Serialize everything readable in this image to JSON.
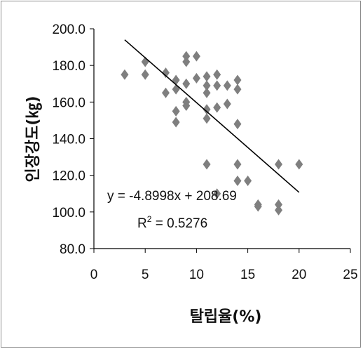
{
  "chart_data": {
    "type": "scatter",
    "xlabel": "탈립율(%)",
    "ylabel": "인장강도(㎏)",
    "xlim": [
      0,
      25
    ],
    "ylim": [
      80,
      200
    ],
    "x_ticks": [
      "0",
      "5",
      "10",
      "15",
      "20",
      "25"
    ],
    "y_ticks": [
      "80.0",
      "100.0",
      "120.0",
      "140.0",
      "160.0",
      "180.0",
      "200.0"
    ],
    "grid": false,
    "marker": "diamond",
    "marker_color": "#7f7f7f",
    "line_color": "#000000",
    "series": [
      {
        "x": [
          3,
          5,
          5,
          7,
          7,
          8,
          8,
          8,
          8,
          9,
          9,
          9,
          9,
          9,
          10,
          10,
          11,
          11,
          11,
          11,
          11,
          11,
          12,
          12,
          12,
          12,
          13,
          13,
          14,
          14,
          14,
          14,
          14,
          15,
          16,
          16,
          18,
          18,
          18,
          20
        ],
        "y": [
          175,
          182,
          175,
          176,
          165,
          172,
          167,
          155,
          149,
          185,
          182,
          170,
          160,
          158,
          185,
          173,
          174,
          169,
          165,
          156,
          151,
          126,
          175,
          169,
          157,
          110,
          169,
          159,
          172,
          167,
          148,
          126,
          117,
          117,
          104,
          103,
          126,
          104,
          101,
          126
        ]
      }
    ],
    "trendline": {
      "slope": -4.8998,
      "intercept": 208.69,
      "x_range": [
        3,
        20
      ],
      "equation": "y = -4.8998x + 208.69",
      "r2_label": "R",
      "r2_sup": "2",
      "r2_value": " = 0.5276"
    }
  }
}
